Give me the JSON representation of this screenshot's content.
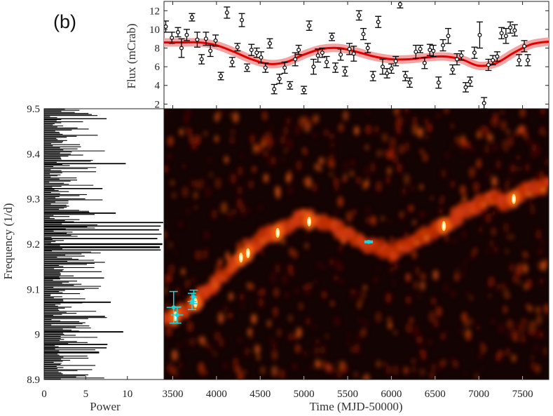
{
  "panel_label": "(b)",
  "colors": {
    "model": "#e00000",
    "model_band": "#f4a3a3",
    "points": "#000000",
    "cyan": "#19d8e0",
    "heat_bg": "#140303"
  },
  "chart_data": [
    {
      "id": "flux-lightcurve",
      "type": "scatter",
      "title": "",
      "xlabel": "",
      "ylabel": "Flux (mCrab)",
      "xlim": [
        3400,
        7800
      ],
      "ylim": [
        1.5,
        13
      ],
      "yticks": [
        2,
        4,
        6,
        8,
        10,
        12
      ],
      "series": [
        {
          "name": "measurements",
          "points": [
            {
              "x": 3420,
              "y": 10.3,
              "err": 0.6
            },
            {
              "x": 3490,
              "y": 9.1,
              "err": 0.6
            },
            {
              "x": 3560,
              "y": 9.7,
              "err": 0.5
            },
            {
              "x": 3600,
              "y": 8.0,
              "err": 1.0
            },
            {
              "x": 3660,
              "y": 9.4,
              "err": 0.6
            },
            {
              "x": 3720,
              "y": 11.3,
              "err": 0.4
            },
            {
              "x": 3780,
              "y": 8.9,
              "err": 0.8
            },
            {
              "x": 3830,
              "y": 6.8,
              "err": 0.5
            },
            {
              "x": 3880,
              "y": 9.0,
              "err": 0.7
            },
            {
              "x": 3930,
              "y": 7.7,
              "err": 0.6
            },
            {
              "x": 3990,
              "y": 8.8,
              "err": 0.6
            },
            {
              "x": 4050,
              "y": 5.0,
              "err": 0.4
            },
            {
              "x": 4120,
              "y": 11.8,
              "err": 0.6
            },
            {
              "x": 4180,
              "y": 6.5,
              "err": 0.5
            },
            {
              "x": 4240,
              "y": 8.1,
              "err": 0.4
            },
            {
              "x": 4290,
              "y": 11.0,
              "err": 0.7
            },
            {
              "x": 4350,
              "y": 5.9,
              "err": 0.4
            },
            {
              "x": 4400,
              "y": 7.8,
              "err": 0.6
            },
            {
              "x": 4460,
              "y": 7.5,
              "err": 0.5
            },
            {
              "x": 4510,
              "y": 7.0,
              "err": 0.6
            },
            {
              "x": 4560,
              "y": 5.9,
              "err": 0.5
            },
            {
              "x": 4610,
              "y": 8.5,
              "err": 0.5
            },
            {
              "x": 4660,
              "y": 3.6,
              "err": 0.5
            },
            {
              "x": 4720,
              "y": 4.7,
              "err": 0.5
            },
            {
              "x": 4780,
              "y": 5.9,
              "err": 0.6
            },
            {
              "x": 4840,
              "y": 4.0,
              "err": 0.4
            },
            {
              "x": 4900,
              "y": 6.8,
              "err": 0.7
            },
            {
              "x": 4940,
              "y": 7.8,
              "err": 0.5
            },
            {
              "x": 5000,
              "y": 3.5,
              "err": 0.4
            },
            {
              "x": 5060,
              "y": 10.4,
              "err": 0.5
            },
            {
              "x": 5110,
              "y": 6.0,
              "err": 0.8
            },
            {
              "x": 5160,
              "y": 7.2,
              "err": 0.7
            },
            {
              "x": 5210,
              "y": 7.5,
              "err": 0.5
            },
            {
              "x": 5260,
              "y": 6.5,
              "err": 0.6
            },
            {
              "x": 5320,
              "y": 9.2,
              "err": 0.4
            },
            {
              "x": 5360,
              "y": 5.9,
              "err": 0.5
            },
            {
              "x": 5420,
              "y": 7.3,
              "err": 0.6
            },
            {
              "x": 5470,
              "y": 5.5,
              "err": 0.5
            },
            {
              "x": 5520,
              "y": 7.9,
              "err": 0.6
            },
            {
              "x": 5570,
              "y": 7.4,
              "err": 0.8
            },
            {
              "x": 5630,
              "y": 11.5,
              "err": 0.5
            },
            {
              "x": 5680,
              "y": 9.5,
              "err": 0.6
            },
            {
              "x": 5730,
              "y": 8.0,
              "err": 0.5
            },
            {
              "x": 5790,
              "y": 5.0,
              "err": 0.5
            },
            {
              "x": 5850,
              "y": 10.8,
              "err": 0.6
            },
            {
              "x": 5900,
              "y": 6.0,
              "err": 0.8
            },
            {
              "x": 5950,
              "y": 5.3,
              "err": 0.5
            },
            {
              "x": 6000,
              "y": 5.8,
              "err": 0.5
            },
            {
              "x": 6050,
              "y": 6.6,
              "err": 0.5
            },
            {
              "x": 6100,
              "y": 12.7,
              "err": 0.4
            },
            {
              "x": 6160,
              "y": 5.0,
              "err": 0.5
            },
            {
              "x": 6210,
              "y": 4.3,
              "err": 0.5
            },
            {
              "x": 6280,
              "y": 7.6,
              "err": 0.7
            },
            {
              "x": 6330,
              "y": 7.9,
              "err": 0.4
            },
            {
              "x": 6380,
              "y": 6.4,
              "err": 0.6
            },
            {
              "x": 6440,
              "y": 7.8,
              "err": 0.6
            },
            {
              "x": 6480,
              "y": 7.7,
              "err": 0.6
            },
            {
              "x": 6540,
              "y": 4.3,
              "err": 0.6
            },
            {
              "x": 6590,
              "y": 8.3,
              "err": 0.6
            },
            {
              "x": 6650,
              "y": 9.3,
              "err": 0.8
            },
            {
              "x": 6700,
              "y": 5.7,
              "err": 0.5
            },
            {
              "x": 6750,
              "y": 6.8,
              "err": 0.6
            },
            {
              "x": 6800,
              "y": 7.2,
              "err": 0.5
            },
            {
              "x": 6850,
              "y": 3.8,
              "err": 0.5
            },
            {
              "x": 6900,
              "y": 4.4,
              "err": 0.5
            },
            {
              "x": 6950,
              "y": 7.5,
              "err": 0.6
            },
            {
              "x": 7010,
              "y": 9.4,
              "err": 1.4
            },
            {
              "x": 7060,
              "y": 2.1,
              "err": 0.6
            },
            {
              "x": 7110,
              "y": 6.2,
              "err": 0.6
            },
            {
              "x": 7160,
              "y": 6.7,
              "err": 0.5
            },
            {
              "x": 7210,
              "y": 7.1,
              "err": 0.5
            },
            {
              "x": 7260,
              "y": 9.6,
              "err": 0.6
            },
            {
              "x": 7310,
              "y": 9.3,
              "err": 0.8
            },
            {
              "x": 7360,
              "y": 10.2,
              "err": 0.6
            },
            {
              "x": 7410,
              "y": 9.9,
              "err": 0.6
            },
            {
              "x": 7460,
              "y": 6.7,
              "err": 0.6
            },
            {
              "x": 7520,
              "y": 8.2,
              "err": 0.6
            },
            {
              "x": 7560,
              "y": 6.7,
              "err": 0.6
            }
          ]
        },
        {
          "name": "sinusoidal model",
          "type": "line",
          "x": [
            3400,
            3600,
            3800,
            4000,
            4200,
            4400,
            4600,
            4800,
            5000,
            5200,
            5400,
            5600,
            5800,
            6000,
            6200,
            6400,
            6600,
            6800,
            7000,
            7200,
            7400,
            7600,
            7800
          ],
          "y": [
            8.6,
            8.6,
            8.6,
            8.3,
            7.6,
            6.8,
            6.3,
            6.5,
            7.3,
            7.9,
            8.0,
            7.6,
            7.1,
            6.8,
            6.8,
            7.0,
            7.1,
            6.8,
            6.1,
            6.4,
            7.5,
            8.4,
            8.7
          ],
          "band_halfwidth": 0.3
        }
      ]
    },
    {
      "id": "power-spectrum",
      "type": "bar",
      "orientation": "horizontal",
      "title": "",
      "xlabel": "Power",
      "ylabel": "Frequency (1/d)",
      "xlim": [
        0,
        14.4
      ],
      "ylim": [
        8.9,
        9.5
      ],
      "xticks": [
        0,
        5,
        10
      ],
      "yticks": [
        8.9,
        9,
        9.1,
        9.2,
        9.3,
        9.4,
        9.5
      ],
      "ytick_labels": [
        "8.9",
        "9",
        "9.1",
        "9.2",
        "9.3",
        "9.4",
        "9.5"
      ],
      "peaks": [
        {
          "freq": 9.248,
          "power": 14.3
        },
        {
          "freq": 9.24,
          "power": 14.0
        },
        {
          "freq": 9.232,
          "power": 13.8
        },
        {
          "freq": 9.222,
          "power": 14.1
        },
        {
          "freq": 9.212,
          "power": 13.6
        },
        {
          "freq": 9.2,
          "power": 14.2
        },
        {
          "freq": 9.193,
          "power": 13.9
        },
        {
          "freq": 9.187,
          "power": 14.0
        },
        {
          "freq": 9.478,
          "power": 7.5
        },
        {
          "freq": 9.378,
          "power": 9.8
        },
        {
          "freq": 9.269,
          "power": 8.6
        },
        {
          "freq": 9.323,
          "power": 7.0
        },
        {
          "freq": 9.125,
          "power": 7.2
        },
        {
          "freq": 9.071,
          "power": 8.0
        },
        {
          "freq": 9.04,
          "power": 7.3
        },
        {
          "freq": 9.006,
          "power": 9.5
        },
        {
          "freq": 8.978,
          "power": 7.6
        },
        {
          "freq": 8.97,
          "power": 7.5
        },
        {
          "freq": 8.96,
          "power": 6.6
        }
      ],
      "noise_level": 1.8,
      "noise_spread": 2.8
    },
    {
      "id": "dynamic-spectrum",
      "type": "heatmap",
      "title": "",
      "xlabel": "Time (MJD-50000)",
      "ylabel": "",
      "xlim": [
        3400,
        7800
      ],
      "ylim": [
        8.9,
        9.5
      ],
      "xticks": [
        3500,
        4000,
        4500,
        5000,
        5500,
        6000,
        6500,
        7000,
        7500
      ],
      "colormap": "hot",
      "ridge": {
        "time": [
          3400,
          3500,
          3600,
          3700,
          3800,
          3900,
          4000,
          4100,
          4200,
          4300,
          4400,
          4500,
          4600,
          4700,
          4800,
          4900,
          5000,
          5100,
          5200,
          5300,
          5400,
          5500,
          5600,
          5700,
          5800,
          5900,
          6000,
          6100,
          6200,
          6300,
          6400,
          6500,
          6600,
          6700,
          6800,
          6900,
          7000,
          7100,
          7200,
          7300,
          7400,
          7500,
          7600,
          7700,
          7800
        ],
        "freq": [
          9.03,
          9.04,
          9.05,
          9.06,
          9.08,
          9.1,
          9.12,
          9.14,
          9.16,
          9.17,
          9.19,
          9.21,
          9.22,
          9.23,
          9.24,
          9.25,
          9.26,
          9.255,
          9.25,
          9.24,
          9.23,
          9.22,
          9.21,
          9.205,
          9.2,
          9.19,
          9.18,
          9.19,
          9.2,
          9.21,
          9.22,
          9.23,
          9.24,
          9.25,
          9.27,
          9.28,
          9.29,
          9.3,
          9.3,
          9.29,
          9.3,
          9.31,
          9.32,
          9.33,
          9.33
        ]
      },
      "hotspots": [
        {
          "time": 4700,
          "freq": 9.225
        },
        {
          "time": 4280,
          "freq": 9.17
        },
        {
          "time": 3760,
          "freq": 9.07
        },
        {
          "time": 3530,
          "freq": 9.04
        },
        {
          "time": 5060,
          "freq": 9.25
        },
        {
          "time": 7400,
          "freq": 9.3
        },
        {
          "time": 6600,
          "freq": 9.24
        },
        {
          "time": 4360,
          "freq": 9.18
        }
      ],
      "cyan_points": [
        {
          "time": 3510,
          "freq": 9.06,
          "ferr": 0.035,
          "terr": 80
        },
        {
          "time": 3550,
          "freq": 9.043,
          "ferr": 0.018,
          "terr": 70
        },
        {
          "time": 3720,
          "freq": 9.073,
          "ferr": 0.018,
          "terr": 50
        },
        {
          "time": 3740,
          "freq": 9.083,
          "ferr": 0.015,
          "terr": 40
        },
        {
          "time": 5740,
          "freq": 9.205,
          "ferr": 0.002,
          "terr": 50
        }
      ]
    }
  ]
}
